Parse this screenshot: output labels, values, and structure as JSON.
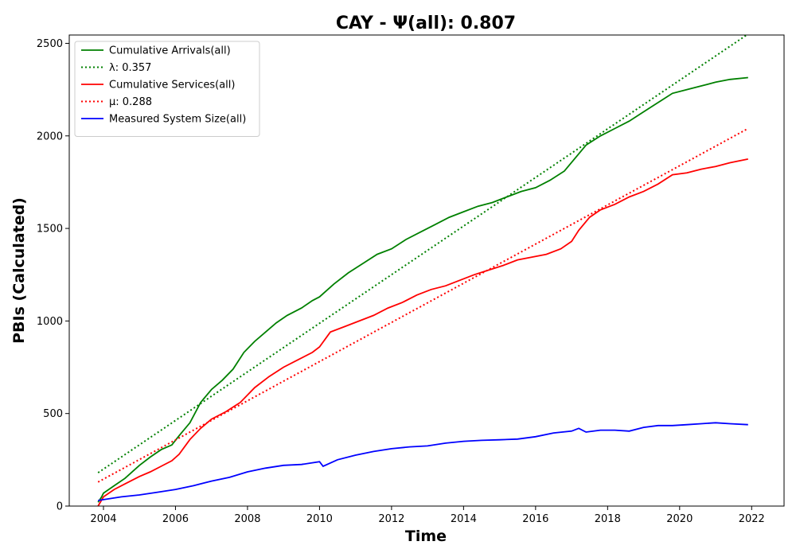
{
  "chart_data": {
    "type": "line",
    "title": "CAY -  Ψ(all): 0.807",
    "xlabel": "Time",
    "ylabel": "PBIs (Calculated)",
    "xlim": [
      2003.05,
      2022.9
    ],
    "ylim": [
      0,
      2545
    ],
    "xticks": [
      2004,
      2006,
      2008,
      2010,
      2012,
      2014,
      2016,
      2018,
      2020,
      2022
    ],
    "yticks": [
      0,
      500,
      1000,
      1500,
      2000,
      2500
    ],
    "grid": false,
    "legend_position": "top-left",
    "series": [
      {
        "name": "Cumulative Arrivals(all)",
        "style": "solid",
        "color": "#008000",
        "x": [
          2003.85,
          2003.95,
          2004.0,
          2004.3,
          2004.6,
          2005.0,
          2005.3,
          2005.6,
          2005.9,
          2006.1,
          2006.4,
          2006.7,
          2007.0,
          2007.3,
          2007.6,
          2007.9,
          2008.2,
          2008.5,
          2008.8,
          2009.1,
          2009.5,
          2009.8,
          2010.0,
          2010.4,
          2010.8,
          2011.2,
          2011.6,
          2012.0,
          2012.4,
          2012.8,
          2013.2,
          2013.6,
          2014.0,
          2014.4,
          2014.8,
          2015.2,
          2015.6,
          2016.0,
          2016.4,
          2016.8,
          2017.1,
          2017.4,
          2017.8,
          2018.2,
          2018.6,
          2019.0,
          2019.4,
          2019.8,
          2020.2,
          2020.6,
          2021.0,
          2021.4,
          2021.9
        ],
        "y": [
          20,
          50,
          70,
          110,
          150,
          220,
          265,
          305,
          330,
          380,
          450,
          560,
          630,
          680,
          740,
          830,
          890,
          940,
          990,
          1030,
          1070,
          1110,
          1130,
          1200,
          1260,
          1310,
          1360,
          1390,
          1440,
          1480,
          1520,
          1560,
          1590,
          1620,
          1640,
          1670,
          1700,
          1720,
          1760,
          1810,
          1880,
          1950,
          2000,
          2040,
          2080,
          2130,
          2180,
          2230,
          2250,
          2270,
          2290,
          2305,
          2315
        ]
      },
      {
        "name": "λ: 0.357",
        "style": "dotted",
        "color": "#008000",
        "x": [
          2003.85,
          2021.9
        ],
        "y": [
          180,
          2550
        ]
      },
      {
        "name": "Cumulative Services(all)",
        "style": "solid",
        "color": "#ff0000",
        "x": [
          2003.85,
          2004.0,
          2004.3,
          2004.6,
          2005.0,
          2005.3,
          2005.6,
          2005.9,
          2006.1,
          2006.4,
          2006.7,
          2007.0,
          2007.4,
          2007.8,
          2008.2,
          2008.6,
          2009.0,
          2009.4,
          2009.8,
          2010.0,
          2010.3,
          2010.7,
          2011.1,
          2011.5,
          2011.9,
          2012.3,
          2012.7,
          2013.1,
          2013.5,
          2013.9,
          2014.3,
          2014.7,
          2015.1,
          2015.5,
          2015.9,
          2016.3,
          2016.7,
          2017.0,
          2017.2,
          2017.5,
          2017.8,
          2018.2,
          2018.6,
          2019.0,
          2019.4,
          2019.8,
          2020.2,
          2020.6,
          2021.0,
          2021.4,
          2021.9
        ],
        "y": [
          0,
          50,
          90,
          120,
          160,
          185,
          215,
          245,
          280,
          360,
          420,
          470,
          510,
          560,
          640,
          700,
          750,
          790,
          830,
          860,
          940,
          970,
          1000,
          1030,
          1070,
          1100,
          1140,
          1170,
          1190,
          1220,
          1250,
          1275,
          1300,
          1330,
          1345,
          1360,
          1390,
          1430,
          1490,
          1560,
          1600,
          1630,
          1670,
          1700,
          1740,
          1790,
          1800,
          1820,
          1835,
          1855,
          1875
        ]
      },
      {
        "name": "μ: 0.288",
        "style": "dotted",
        "color": "#ff0000",
        "x": [
          2003.85,
          2021.9
        ],
        "y": [
          130,
          2040
        ]
      },
      {
        "name": "Measured System Size(all)",
        "style": "solid",
        "color": "#0000ff",
        "x": [
          2003.85,
          2004.0,
          2004.5,
          2005.0,
          2005.5,
          2006.0,
          2006.5,
          2007.0,
          2007.5,
          2008.0,
          2008.5,
          2009.0,
          2009.5,
          2010.0,
          2010.1,
          2010.5,
          2011.0,
          2011.5,
          2012.0,
          2012.5,
          2013.0,
          2013.5,
          2014.0,
          2014.5,
          2015.0,
          2015.5,
          2016.0,
          2016.5,
          2017.0,
          2017.2,
          2017.4,
          2017.8,
          2018.2,
          2018.6,
          2019.0,
          2019.4,
          2019.8,
          2020.2,
          2020.6,
          2021.0,
          2021.4,
          2021.9
        ],
        "y": [
          30,
          35,
          50,
          60,
          75,
          90,
          110,
          135,
          155,
          185,
          205,
          220,
          225,
          240,
          215,
          250,
          275,
          295,
          310,
          320,
          325,
          340,
          350,
          355,
          358,
          362,
          375,
          395,
          405,
          420,
          400,
          410,
          410,
          405,
          425,
          435,
          435,
          440,
          445,
          450,
          445,
          440
        ]
      }
    ]
  }
}
